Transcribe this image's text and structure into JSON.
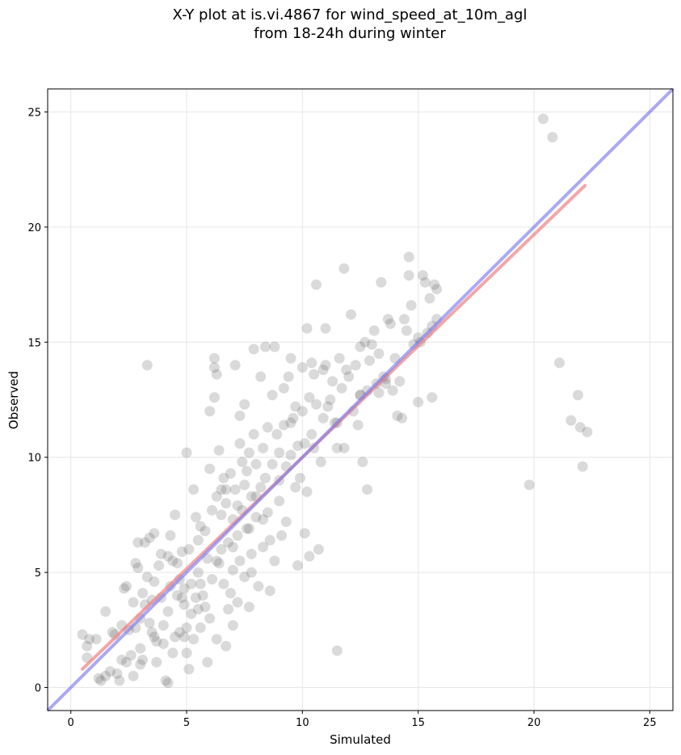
{
  "chart_data": {
    "type": "scatter",
    "title_lines": [
      "X-Y plot at is.vi.4867 for wind_speed_at_10m_agl",
      "from 18-24h during winter"
    ],
    "xlabel": "Simulated",
    "ylabel": "Observed",
    "xlim": [
      -1,
      26
    ],
    "ylim": [
      -1,
      26
    ],
    "xticks": [
      0,
      5,
      10,
      15,
      20,
      25
    ],
    "yticks": [
      0,
      5,
      10,
      15,
      20,
      25
    ],
    "grid": true,
    "colors": {
      "points": "#555555",
      "fit_line": "#f08080",
      "reference_line": "#7b7bef"
    },
    "fit_line": {
      "x": [
        0.5,
        22.2
      ],
      "y": [
        0.8,
        21.8
      ]
    },
    "reference_line": {
      "x": [
        -1,
        26
      ],
      "y": [
        -1,
        26
      ]
    },
    "points": [
      [
        0.5,
        2.3
      ],
      [
        0.7,
        1.8
      ],
      [
        0.7,
        1.3
      ],
      [
        0.8,
        2.1
      ],
      [
        1.1,
        2.1
      ],
      [
        1.2,
        0.4
      ],
      [
        1.3,
        0.3
      ],
      [
        1.5,
        0.5
      ],
      [
        1.5,
        3.3
      ],
      [
        1.7,
        0.7
      ],
      [
        1.8,
        2.4
      ],
      [
        1.9,
        2.3
      ],
      [
        2.0,
        0.6
      ],
      [
        2.1,
        0.3
      ],
      [
        2.2,
        2.7
      ],
      [
        2.2,
        1.2
      ],
      [
        2.3,
        4.3
      ],
      [
        2.4,
        4.4
      ],
      [
        2.5,
        2.5
      ],
      [
        2.6,
        1.4
      ],
      [
        2.7,
        3.7
      ],
      [
        2.7,
        0.5
      ],
      [
        2.8,
        2.6
      ],
      [
        2.8,
        5.4
      ],
      [
        2.9,
        6.3
      ],
      [
        2.9,
        5.2
      ],
      [
        3.0,
        3.0
      ],
      [
        3.0,
        1.7
      ],
      [
        3.1,
        1.2
      ],
      [
        3.1,
        4.1
      ],
      [
        3.2,
        3.6
      ],
      [
        3.2,
        6.3
      ],
      [
        3.3,
        4.8
      ],
      [
        3.3,
        14.0
      ],
      [
        3.4,
        6.5
      ],
      [
        3.4,
        2.8
      ],
      [
        3.5,
        3.8
      ],
      [
        3.5,
        2.4
      ],
      [
        3.6,
        4.6
      ],
      [
        3.6,
        6.7
      ],
      [
        3.7,
        2.0
      ],
      [
        3.7,
        1.1
      ],
      [
        3.8,
        5.3
      ],
      [
        3.9,
        3.9
      ],
      [
        3.9,
        5.8
      ],
      [
        4.0,
        1.9
      ],
      [
        4.0,
        2.7
      ],
      [
        4.1,
        0.3
      ],
      [
        4.2,
        0.2
      ],
      [
        4.2,
        3.3
      ],
      [
        4.3,
        4.4
      ],
      [
        4.3,
        6.6
      ],
      [
        4.4,
        5.5
      ],
      [
        4.4,
        1.5
      ],
      [
        4.5,
        7.5
      ],
      [
        4.5,
        2.2
      ],
      [
        4.6,
        4.0
      ],
      [
        4.6,
        5.4
      ],
      [
        4.7,
        2.4
      ],
      [
        4.7,
        4.7
      ],
      [
        4.8,
        5.9
      ],
      [
        4.8,
        3.9
      ],
      [
        4.9,
        2.2
      ],
      [
        4.9,
        4.3
      ],
      [
        5.0,
        10.2
      ],
      [
        5.0,
        2.6
      ],
      [
        5.0,
        1.5
      ],
      [
        5.1,
        0.8
      ],
      [
        5.1,
        6.0
      ],
      [
        5.2,
        4.5
      ],
      [
        5.2,
        3.2
      ],
      [
        5.3,
        8.6
      ],
      [
        5.3,
        2.1
      ],
      [
        5.4,
        7.4
      ],
      [
        5.4,
        3.9
      ],
      [
        5.5,
        5.0
      ],
      [
        5.5,
        6.4
      ],
      [
        5.6,
        2.6
      ],
      [
        5.6,
        7.0
      ],
      [
        5.7,
        4.0
      ],
      [
        5.8,
        3.5
      ],
      [
        5.8,
        6.8
      ],
      [
        5.9,
        5.6
      ],
      [
        5.9,
        1.1
      ],
      [
        6.0,
        12.0
      ],
      [
        6.0,
        3.0
      ],
      [
        6.0,
        9.5
      ],
      [
        6.1,
        4.7
      ],
      [
        6.1,
        7.7
      ],
      [
        6.2,
        14.3
      ],
      [
        6.2,
        12.6
      ],
      [
        6.2,
        13.9
      ],
      [
        6.3,
        13.6
      ],
      [
        6.3,
        2.1
      ],
      [
        6.3,
        8.3
      ],
      [
        6.4,
        10.3
      ],
      [
        6.4,
        5.4
      ],
      [
        6.5,
        7.5
      ],
      [
        6.5,
        6.0
      ],
      [
        6.6,
        4.5
      ],
      [
        6.6,
        9.1
      ],
      [
        6.7,
        8.0
      ],
      [
        6.7,
        1.8
      ],
      [
        6.8,
        3.4
      ],
      [
        6.8,
        6.3
      ],
      [
        6.9,
        9.3
      ],
      [
        6.9,
        4.1
      ],
      [
        7.0,
        7.3
      ],
      [
        7.0,
        5.1
      ],
      [
        7.0,
        2.7
      ],
      [
        7.1,
        14.0
      ],
      [
        7.1,
        8.6
      ],
      [
        7.2,
        3.7
      ],
      [
        7.2,
        6.6
      ],
      [
        7.3,
        11.8
      ],
      [
        7.3,
        10.6
      ],
      [
        7.3,
        5.5
      ],
      [
        7.4,
        9.8
      ],
      [
        7.4,
        7.7
      ],
      [
        7.5,
        12.3
      ],
      [
        7.5,
        8.8
      ],
      [
        7.5,
        4.8
      ],
      [
        7.6,
        9.4
      ],
      [
        7.6,
        6.9
      ],
      [
        7.7,
        10.2
      ],
      [
        7.7,
        3.5
      ],
      [
        7.8,
        8.3
      ],
      [
        7.8,
        5.8
      ],
      [
        7.9,
        14.7
      ],
      [
        7.9,
        11.0
      ],
      [
        8.0,
        9.7
      ],
      [
        8.0,
        7.4
      ],
      [
        8.1,
        4.4
      ],
      [
        8.2,
        8.7
      ],
      [
        8.2,
        13.5
      ],
      [
        8.3,
        10.4
      ],
      [
        8.3,
        6.1
      ],
      [
        8.4,
        14.8
      ],
      [
        8.4,
        9.1
      ],
      [
        8.5,
        7.6
      ],
      [
        8.5,
        11.3
      ],
      [
        8.6,
        4.2
      ],
      [
        8.7,
        12.7
      ],
      [
        8.7,
        9.7
      ],
      [
        8.8,
        14.8
      ],
      [
        8.8,
        5.5
      ],
      [
        8.9,
        11.0
      ],
      [
        9.0,
        8.1
      ],
      [
        9.0,
        10.2
      ],
      [
        9.1,
        6.6
      ],
      [
        9.2,
        11.4
      ],
      [
        9.2,
        13.0
      ],
      [
        9.3,
        9.6
      ],
      [
        9.3,
        7.2
      ],
      [
        9.4,
        13.5
      ],
      [
        9.5,
        10.1
      ],
      [
        9.5,
        14.3
      ],
      [
        9.6,
        11.7
      ],
      [
        9.7,
        8.7
      ],
      [
        9.7,
        12.2
      ],
      [
        9.8,
        10.5
      ],
      [
        9.8,
        5.3
      ],
      [
        9.9,
        9.1
      ],
      [
        10.0,
        12.0
      ],
      [
        10.0,
        13.9
      ],
      [
        10.1,
        6.7
      ],
      [
        10.1,
        10.6
      ],
      [
        10.2,
        8.5
      ],
      [
        10.2,
        15.6
      ],
      [
        10.3,
        12.6
      ],
      [
        10.4,
        11.0
      ],
      [
        10.4,
        14.1
      ],
      [
        10.5,
        13.6
      ],
      [
        10.6,
        17.5
      ],
      [
        10.6,
        12.3
      ],
      [
        10.7,
        6.0
      ],
      [
        10.8,
        9.8
      ],
      [
        10.9,
        13.8
      ],
      [
        10.9,
        11.7
      ],
      [
        11.0,
        15.6
      ],
      [
        11.0,
        14.0
      ],
      [
        11.1,
        12.2
      ],
      [
        11.2,
        12.5
      ],
      [
        11.3,
        13.3
      ],
      [
        11.4,
        11.5
      ],
      [
        11.5,
        1.6
      ],
      [
        11.5,
        10.4
      ],
      [
        11.6,
        14.3
      ],
      [
        11.7,
        13.0
      ],
      [
        11.8,
        18.2
      ],
      [
        11.8,
        10.4
      ],
      [
        11.9,
        13.8
      ],
      [
        12.0,
        13.5
      ],
      [
        12.1,
        16.2
      ],
      [
        12.2,
        12.0
      ],
      [
        12.3,
        14.0
      ],
      [
        12.4,
        11.4
      ],
      [
        12.5,
        12.7
      ],
      [
        12.5,
        14.8
      ],
      [
        12.6,
        9.8
      ],
      [
        12.7,
        15.0
      ],
      [
        12.8,
        12.9
      ],
      [
        12.8,
        8.6
      ],
      [
        12.9,
        14.2
      ],
      [
        13.0,
        14.9
      ],
      [
        13.1,
        15.5
      ],
      [
        13.2,
        13.2
      ],
      [
        13.3,
        14.5
      ],
      [
        13.3,
        12.8
      ],
      [
        13.4,
        17.6
      ],
      [
        13.5,
        13.5
      ],
      [
        13.6,
        13.4
      ],
      [
        13.7,
        16.0
      ],
      [
        13.8,
        15.8
      ],
      [
        13.9,
        12.9
      ],
      [
        14.0,
        14.3
      ],
      [
        14.1,
        11.8
      ],
      [
        14.2,
        13.3
      ],
      [
        14.3,
        11.7
      ],
      [
        14.4,
        16.0
      ],
      [
        14.5,
        15.5
      ],
      [
        14.6,
        17.9
      ],
      [
        14.7,
        16.6
      ],
      [
        14.8,
        14.9
      ],
      [
        15.0,
        12.4
      ],
      [
        15.1,
        15.0
      ],
      [
        15.2,
        17.9
      ],
      [
        15.3,
        17.6
      ],
      [
        15.4,
        15.4
      ],
      [
        15.5,
        16.9
      ],
      [
        15.6,
        15.7
      ],
      [
        15.6,
        12.6
      ],
      [
        15.7,
        17.5
      ],
      [
        15.8,
        17.3
      ],
      [
        15.8,
        16.0
      ],
      [
        19.8,
        8.8
      ],
      [
        20.4,
        24.7
      ],
      [
        20.8,
        23.9
      ],
      [
        21.1,
        14.1
      ],
      [
        21.6,
        11.6
      ],
      [
        21.9,
        12.7
      ],
      [
        22.0,
        11.3
      ],
      [
        22.1,
        9.6
      ],
      [
        22.3,
        11.1
      ],
      [
        14.6,
        18.7
      ],
      [
        3.0,
        1.0
      ],
      [
        4.2,
        5.7
      ],
      [
        6.5,
        8.6
      ],
      [
        7.8,
        5.0
      ],
      [
        8.6,
        6.4
      ],
      [
        9.5,
        11.5
      ],
      [
        10.3,
        5.7
      ],
      [
        5.5,
        3.4
      ],
      [
        2.4,
        1.1
      ],
      [
        3.6,
        2.2
      ],
      [
        4.9,
        3.6
      ],
      [
        6.7,
        8.6
      ],
      [
        7.2,
        7.9
      ],
      [
        8.0,
        8.3
      ],
      [
        9.0,
        9.0
      ],
      [
        10.5,
        10.4
      ],
      [
        11.5,
        11.5
      ],
      [
        12.5,
        12.7
      ],
      [
        13.6,
        13.2
      ],
      [
        15.0,
        15.2
      ],
      [
        5.6,
        4.5
      ],
      [
        6.3,
        5.5
      ],
      [
        7.0,
        6.1
      ],
      [
        7.7,
        6.9
      ],
      [
        8.3,
        7.3
      ]
    ]
  }
}
